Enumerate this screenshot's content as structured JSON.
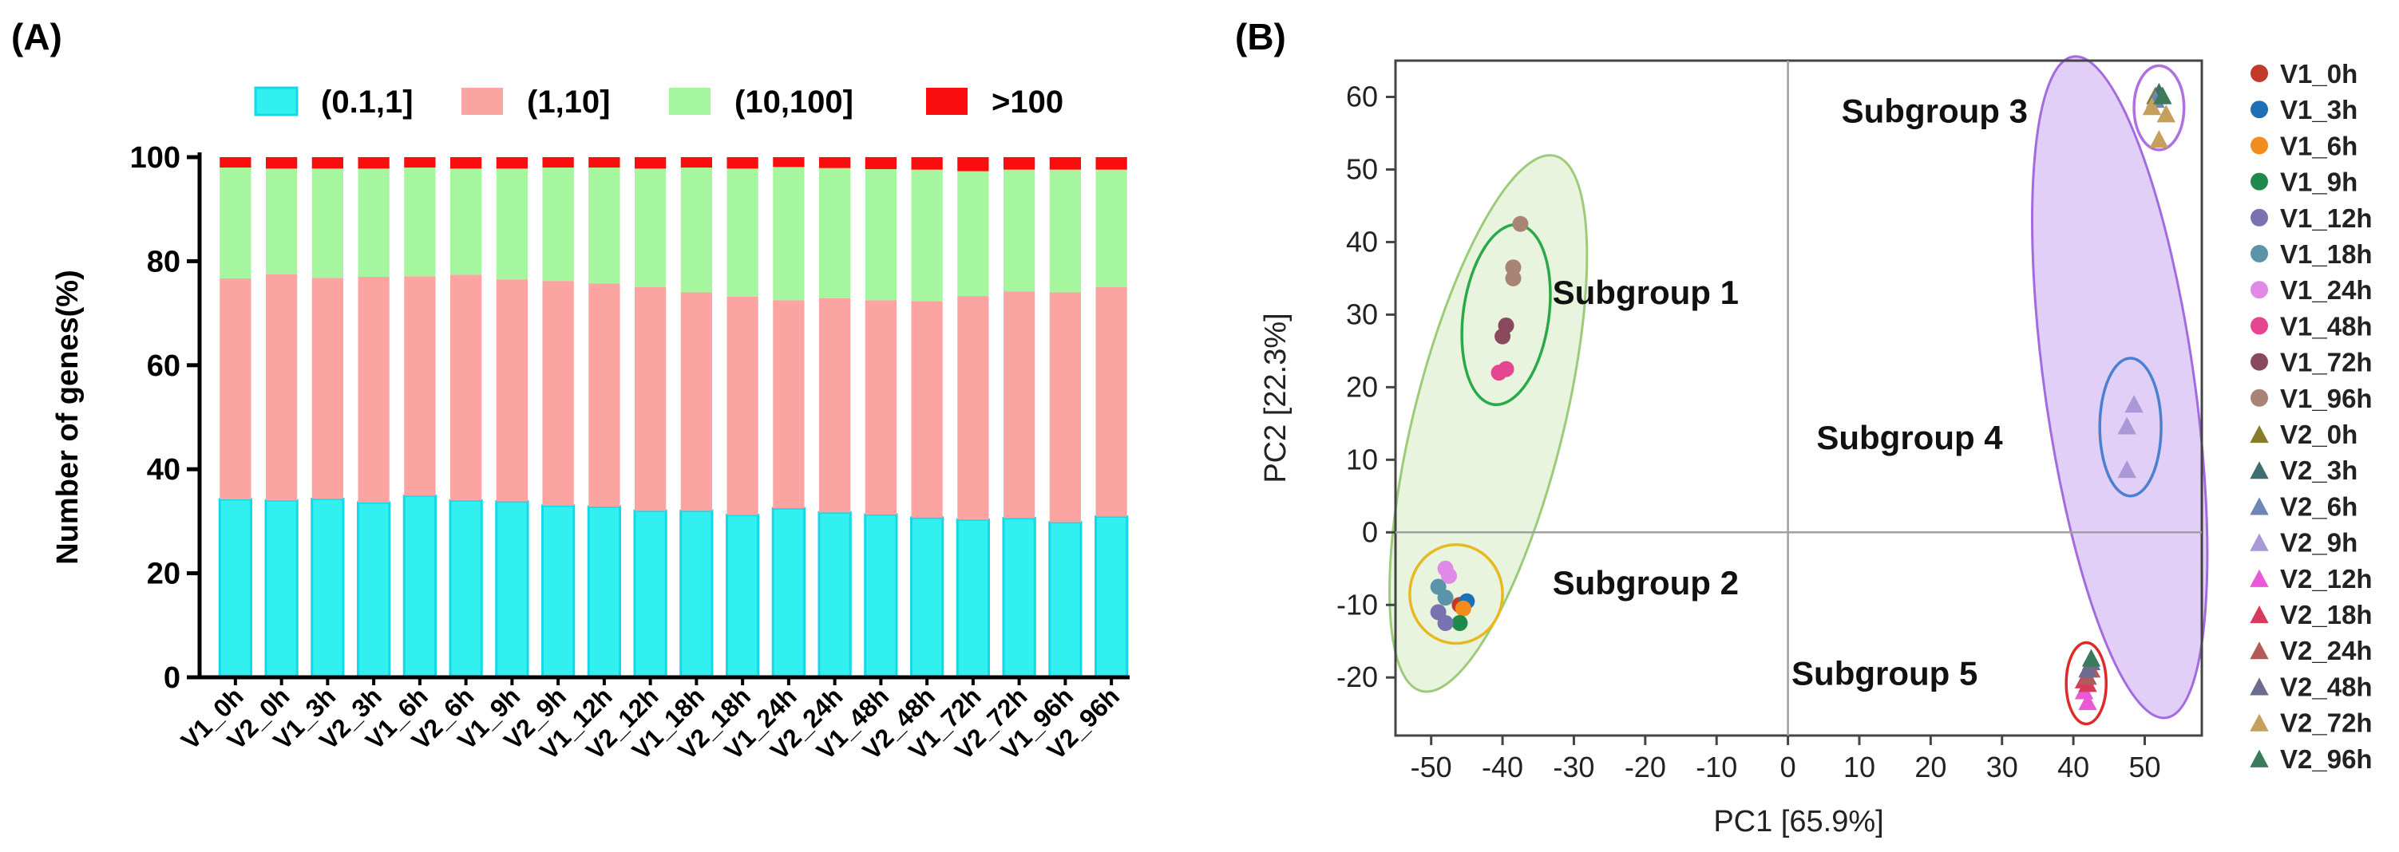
{
  "panels": {
    "a_label": "(A)",
    "b_label": "(B)"
  },
  "chart_data": [
    {
      "type": "bar",
      "stacked": true,
      "ylabel": "Number of genes(%)",
      "ylim": [
        0,
        100
      ],
      "yticks": [
        0,
        20,
        40,
        60,
        80,
        100
      ],
      "legend_position": "top",
      "categories": [
        "V1_0h",
        "V2_0h",
        "V1_3h",
        "V2_3h",
        "V1_6h",
        "V2_6h",
        "V1_9h",
        "V2_9h",
        "V1_12h",
        "V2_12h",
        "V1_18h",
        "V2_18h",
        "V1_24h",
        "V2_24h",
        "V1_48h",
        "V2_48h",
        "V1_72h",
        "V2_72h",
        "V1_96h",
        "V2_96h"
      ],
      "series": [
        {
          "name": "(0.1,1]",
          "color": "#33f0f0",
          "values": [
            34.2,
            34.0,
            34.3,
            33.6,
            34.9,
            34.0,
            33.8,
            33.0,
            32.8,
            32.0,
            32.0,
            31.2,
            32.5,
            31.7,
            31.3,
            30.7,
            30.3,
            30.6,
            29.8,
            30.9
          ]
        },
        {
          "name": "(1,10]",
          "color": "#fca4a1",
          "values": [
            42.5,
            43.5,
            42.5,
            43.4,
            42.2,
            43.4,
            42.7,
            43.2,
            42.9,
            43.0,
            42.0,
            42.0,
            40.0,
            41.2,
            41.2,
            41.6,
            43.0,
            43.6,
            44.2,
            44.1
          ]
        },
        {
          "name": "(10,100]",
          "color": "#a6f59f",
          "values": [
            21.3,
            20.3,
            21.0,
            20.8,
            20.9,
            20.4,
            21.3,
            21.8,
            22.3,
            22.8,
            24.0,
            24.6,
            25.6,
            25.0,
            25.2,
            25.3,
            24.0,
            23.4,
            23.6,
            22.6
          ]
        },
        {
          "name": ">100",
          "color": "#fc0d0d",
          "values": [
            2.0,
            2.2,
            2.2,
            2.2,
            2.0,
            2.2,
            2.2,
            2.0,
            2.0,
            2.2,
            2.0,
            2.2,
            1.9,
            2.1,
            2.3,
            2.4,
            2.7,
            2.4,
            2.4,
            2.4
          ]
        }
      ]
    },
    {
      "type": "scatter",
      "xlabel": "PC1 [65.9%]",
      "ylabel": "PC2 [22.3%]",
      "xlim": [
        -55,
        58
      ],
      "ylim": [
        -28,
        65
      ],
      "xticks": [
        -50,
        -40,
        -30,
        -20,
        -10,
        0,
        10,
        20,
        30,
        40,
        50
      ],
      "yticks": [
        -20,
        -10,
        0,
        10,
        20,
        30,
        40,
        50,
        60
      ],
      "grid": false,
      "legend_position": "right",
      "annotations": [
        "Subgroup 1",
        "Subgroup 2",
        "Subgroup 3",
        "Subgroup 4",
        "Subgroup 5"
      ],
      "series": [
        {
          "name": "V1_0h",
          "marker": "circle",
          "color": "#c0392b",
          "points": [
            [
              -46,
              -10
            ]
          ]
        },
        {
          "name": "V1_3h",
          "marker": "circle",
          "color": "#1f6fb4",
          "points": [
            [
              -45,
              -9.5
            ]
          ]
        },
        {
          "name": "V1_6h",
          "marker": "circle",
          "color": "#f28c1e",
          "points": [
            [
              -45.5,
              -10.5
            ]
          ]
        },
        {
          "name": "V1_9h",
          "marker": "circle",
          "color": "#1e8a4c",
          "points": [
            [
              -46,
              -12.5
            ]
          ]
        },
        {
          "name": "V1_12h",
          "marker": "circle",
          "color": "#7873b0",
          "points": [
            [
              -48,
              -12.5
            ],
            [
              -49,
              -11
            ]
          ]
        },
        {
          "name": "V1_18h",
          "marker": "circle",
          "color": "#5b93a8",
          "points": [
            [
              -49,
              -7.5
            ],
            [
              -48,
              -9
            ]
          ]
        },
        {
          "name": "V1_24h",
          "marker": "circle",
          "color": "#e08ae8",
          "points": [
            [
              -48,
              -5
            ],
            [
              -47.5,
              -6
            ]
          ]
        },
        {
          "name": "V1_48h",
          "marker": "circle",
          "color": "#e64592",
          "points": [
            [
              -40.5,
              22
            ],
            [
              -39.5,
              22.5
            ]
          ]
        },
        {
          "name": "V1_72h",
          "marker": "circle",
          "color": "#8a4a5e",
          "points": [
            [
              -40,
              27
            ],
            [
              -39.5,
              28.5
            ]
          ]
        },
        {
          "name": "V1_96h",
          "marker": "circle",
          "color": "#a88474",
          "points": [
            [
              -37.5,
              42.5
            ],
            [
              -38.5,
              36.5
            ],
            [
              -38.5,
              35
            ]
          ]
        },
        {
          "name": "V2_0h",
          "marker": "triangle",
          "color": "#857c2c",
          "points": [
            [
              51.5,
              60
            ]
          ]
        },
        {
          "name": "V2_3h",
          "marker": "triangle",
          "color": "#3e6e6e",
          "points": [
            [
              52,
              60.5
            ]
          ]
        },
        {
          "name": "V2_6h",
          "marker": "triangle",
          "color": "#6d86b5",
          "points": [
            [
              51.5,
              59.5
            ]
          ]
        },
        {
          "name": "V2_9h",
          "marker": "triangle",
          "color": "#a999d6",
          "points": [
            [
              48.5,
              17.5
            ],
            [
              47.5,
              14.5
            ],
            [
              47.5,
              8.5
            ]
          ]
        },
        {
          "name": "V2_12h",
          "marker": "triangle",
          "color": "#e85ad6",
          "points": [
            [
              41.5,
              -22
            ],
            [
              42,
              -23.5
            ]
          ]
        },
        {
          "name": "V2_18h",
          "marker": "triangle",
          "color": "#d63a5c",
          "points": [
            [
              41.5,
              -20.5
            ],
            [
              42,
              -21
            ]
          ]
        },
        {
          "name": "V2_24h",
          "marker": "triangle",
          "color": "#b05a5a",
          "points": [
            [
              42.5,
              -19
            ],
            [
              42,
              -20
            ]
          ]
        },
        {
          "name": "V2_48h",
          "marker": "triangle",
          "color": "#6c6c8e",
          "points": [
            [
              42.5,
              -18
            ],
            [
              42,
              -19
            ]
          ]
        },
        {
          "name": "V2_72h",
          "marker": "triangle",
          "color": "#c4a05c",
          "points": [
            [
              51,
              58.5
            ],
            [
              53,
              57.5
            ],
            [
              52,
              54
            ]
          ]
        },
        {
          "name": "V2_96h",
          "marker": "triangle",
          "color": "#3b7a5a",
          "points": [
            [
              52.5,
              60
            ],
            [
              42.5,
              -17.5
            ]
          ]
        }
      ]
    }
  ]
}
